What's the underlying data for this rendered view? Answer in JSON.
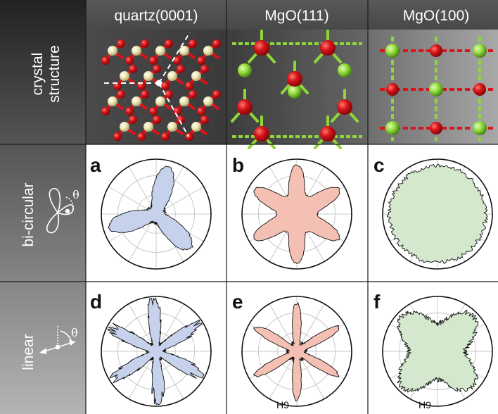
{
  "columns": [
    {
      "label": "quartz(0001)"
    },
    {
      "label": "MgO(111)"
    },
    {
      "label": "MgO(100)"
    }
  ],
  "rows": [
    {
      "label_lines": [
        "crystal",
        "structure"
      ]
    },
    {
      "label": "bi-circular",
      "symbol": "θ"
    },
    {
      "label": "linear",
      "symbol": "θ"
    }
  ],
  "panels": [
    {
      "letter": "a",
      "color": "#c6d1ec",
      "symmetry": 3,
      "shape": "bi-circular quartz lobes",
      "harmonic": ""
    },
    {
      "letter": "b",
      "color": "#f4c0b4",
      "symmetry": 6,
      "shape": "six-fold star",
      "harmonic": ""
    },
    {
      "letter": "c",
      "color": "#d3e8cc",
      "symmetry": 0,
      "shape": "near-isotropic",
      "harmonic": ""
    },
    {
      "letter": "d",
      "color": "#c6d1ec",
      "symmetry": 6,
      "shape": "spiky six-fold",
      "harmonic": ""
    },
    {
      "letter": "e",
      "color": "#f4c0b4",
      "symmetry": 6,
      "shape": "six-fold star",
      "harmonic": "H9"
    },
    {
      "letter": "f",
      "color": "#d3e8cc",
      "symmetry": 4,
      "shape": "four-fold",
      "harmonic": "H9"
    }
  ],
  "colors": {
    "oxygen": "#d8141a",
    "silicon": "#ece6b0",
    "magnesium": "#8fd63a",
    "polar_grid": "#c8c8c8",
    "outline": "#111111"
  }
}
